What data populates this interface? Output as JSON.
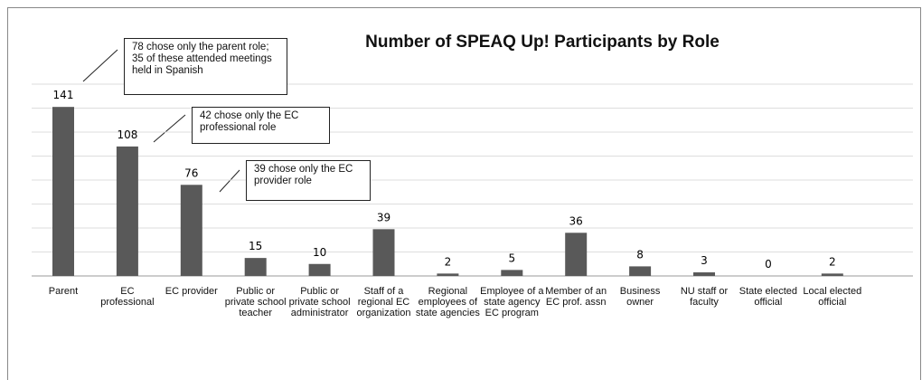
{
  "chart_data": {
    "type": "bar",
    "title": "Number of SPEAQ Up! Participants by Role",
    "categories": [
      "Parent",
      "EC professional",
      "EC provider",
      "Public or private school teacher",
      "Public or private school administrator",
      "Staff of a regional EC organization",
      "Regional employees of state agencies",
      "Employee of a state agency EC program",
      "Member of an EC prof. assn",
      "Business owner",
      "NU staff or faculty",
      "State elected official",
      "Local elected official"
    ],
    "values": [
      141,
      108,
      76,
      15,
      10,
      39,
      2,
      5,
      36,
      8,
      3,
      0,
      2
    ],
    "color": "#595959",
    "ylim": [
      0,
      160
    ],
    "yticks": [
      0,
      20,
      40,
      60,
      80,
      100,
      120,
      140,
      160
    ],
    "grid": true,
    "annotations": [
      "78 chose only the parent role; 35 of these attended meetings held in Spanish",
      "42 chose only the EC professional role",
      "39 chose only the EC provider role"
    ]
  }
}
